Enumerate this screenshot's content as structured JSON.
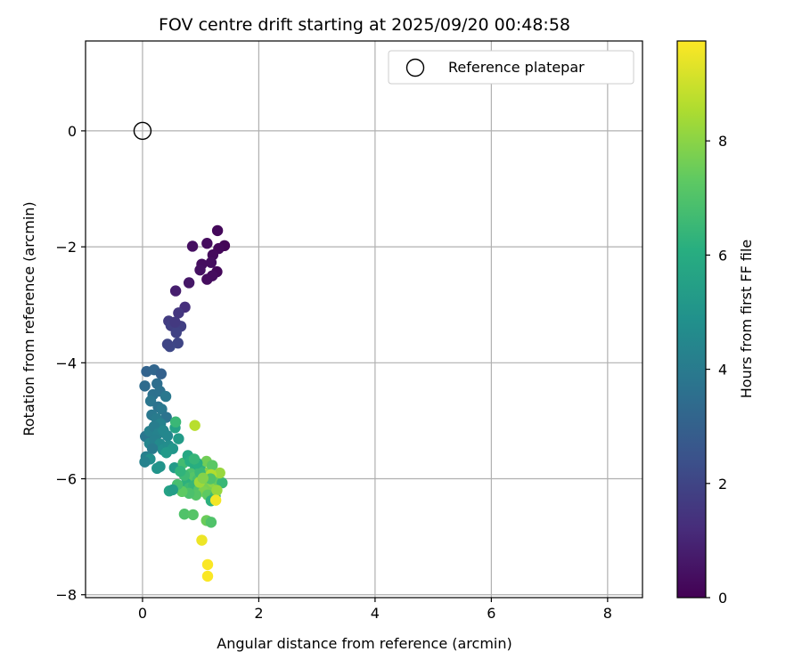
{
  "chart_data": {
    "type": "scatter",
    "title": "FOV centre drift starting at 2025/09/20 00:48:58",
    "xlabel": "Angular distance from reference (arcmin)",
    "ylabel": "Rotation from reference (arcmin)",
    "xlim": [
      -0.98,
      8.6
    ],
    "ylim": [
      -8.05,
      1.55
    ],
    "xticks": [
      0,
      2,
      4,
      6,
      8
    ],
    "yticks": [
      0,
      -2,
      -4,
      -6,
      -8
    ],
    "grid": true,
    "legend": {
      "placement": "top-right",
      "entries": [
        "Reference platepar"
      ]
    },
    "reference_point": {
      "x": 0,
      "y": 0
    },
    "colorbar": {
      "label": "Hours from first FF file",
      "min": 0,
      "max": 9.75,
      "ticks": [
        0,
        2,
        4,
        6,
        8
      ],
      "colormap": "viridis"
    },
    "series": [
      {
        "points": [
          {
            "x": 1.29,
            "y": -1.72,
            "t": 0.2
          },
          {
            "x": 1.41,
            "y": -1.98,
            "t": 0.1
          },
          {
            "x": 1.31,
            "y": -2.03,
            "t": 0.2
          },
          {
            "x": 1.11,
            "y": -1.94,
            "t": 0.3
          },
          {
            "x": 1.21,
            "y": -2.14,
            "t": 0.25
          },
          {
            "x": 0.86,
            "y": -1.99,
            "t": 0.4
          },
          {
            "x": 1.02,
            "y": -2.3,
            "t": 0.35
          },
          {
            "x": 0.99,
            "y": -2.4,
            "t": 0.45
          },
          {
            "x": 1.28,
            "y": -2.43,
            "t": 0.2
          },
          {
            "x": 1.2,
            "y": -2.5,
            "t": 0.3
          },
          {
            "x": 1.11,
            "y": -2.56,
            "t": 0.3
          },
          {
            "x": 1.18,
            "y": -2.27,
            "t": 0.35
          },
          {
            "x": 0.8,
            "y": -2.62,
            "t": 0.6
          },
          {
            "x": 0.57,
            "y": -2.76,
            "t": 0.8
          },
          {
            "x": 0.73,
            "y": -3.04,
            "t": 1.3
          },
          {
            "x": 0.62,
            "y": -3.14,
            "t": 1.5
          },
          {
            "x": 0.45,
            "y": -3.28,
            "t": 1.7
          },
          {
            "x": 0.49,
            "y": -3.36,
            "t": 1.8
          },
          {
            "x": 0.66,
            "y": -3.37,
            "t": 1.8
          },
          {
            "x": 0.58,
            "y": -3.48,
            "t": 1.9
          },
          {
            "x": 0.61,
            "y": -3.66,
            "t": 2.0
          },
          {
            "x": 0.47,
            "y": -3.72,
            "t": 2.1
          },
          {
            "x": 0.43,
            "y": -3.68,
            "t": 2.0
          },
          {
            "x": 0.56,
            "y": -3.3,
            "t": 1.6
          },
          {
            "x": 0.07,
            "y": -4.15,
            "t": 3.1
          },
          {
            "x": 0.2,
            "y": -4.12,
            "t": 3.2
          },
          {
            "x": 0.32,
            "y": -4.19,
            "t": 3.0
          },
          {
            "x": 0.04,
            "y": -4.4,
            "t": 3.4
          },
          {
            "x": 0.25,
            "y": -4.36,
            "t": 3.5
          },
          {
            "x": 0.18,
            "y": -4.55,
            "t": 3.6
          },
          {
            "x": 0.3,
            "y": -4.49,
            "t": 3.6
          },
          {
            "x": 0.4,
            "y": -4.58,
            "t": 3.9
          },
          {
            "x": 0.14,
            "y": -4.66,
            "t": 3.8
          },
          {
            "x": 0.27,
            "y": -4.76,
            "t": 3.7
          },
          {
            "x": 0.33,
            "y": -4.8,
            "t": 3.9
          },
          {
            "x": 0.41,
            "y": -4.94,
            "t": 3.7
          },
          {
            "x": 0.16,
            "y": -4.9,
            "t": 3.9
          },
          {
            "x": 0.24,
            "y": -4.96,
            "t": 4.0
          },
          {
            "x": 0.31,
            "y": -5.05,
            "t": 4.3
          },
          {
            "x": 0.05,
            "y": -5.27,
            "t": 3.8
          },
          {
            "x": 0.12,
            "y": -5.18,
            "t": 4.2
          },
          {
            "x": 0.2,
            "y": -5.1,
            "t": 4.1
          },
          {
            "x": 0.27,
            "y": -5.22,
            "t": 4.3
          },
          {
            "x": 0.36,
            "y": -5.17,
            "t": 4.5
          },
          {
            "x": 0.43,
            "y": -5.26,
            "t": 4.5
          },
          {
            "x": 0.12,
            "y": -5.39,
            "t": 4.4
          },
          {
            "x": 0.21,
            "y": -5.33,
            "t": 4.2
          },
          {
            "x": 0.3,
            "y": -5.4,
            "t": 4.6
          },
          {
            "x": 0.35,
            "y": -5.5,
            "t": 4.8
          },
          {
            "x": 0.45,
            "y": -5.43,
            "t": 4.7
          },
          {
            "x": 0.52,
            "y": -5.48,
            "t": 5.1
          },
          {
            "x": 0.62,
            "y": -5.31,
            "t": 5.3
          },
          {
            "x": 0.17,
            "y": -5.48,
            "t": 4.0
          },
          {
            "x": 0.06,
            "y": -5.62,
            "t": 4.2
          },
          {
            "x": 0.13,
            "y": -5.66,
            "t": 4.8
          },
          {
            "x": 0.04,
            "y": -5.71,
            "t": 4.3
          },
          {
            "x": 0.25,
            "y": -5.82,
            "t": 5.0
          },
          {
            "x": 0.3,
            "y": -5.79,
            "t": 5.0
          },
          {
            "x": 0.41,
            "y": -5.55,
            "t": 5.2
          },
          {
            "x": 0.55,
            "y": -5.81,
            "t": 5.3
          },
          {
            "x": 0.56,
            "y": -5.12,
            "t": 5.6
          },
          {
            "x": 0.57,
            "y": -5.02,
            "t": 6.5
          },
          {
            "x": 0.7,
            "y": -5.73,
            "t": 6.7
          },
          {
            "x": 0.78,
            "y": -5.6,
            "t": 5.8
          },
          {
            "x": 0.82,
            "y": -5.7,
            "t": 6.1
          },
          {
            "x": 0.91,
            "y": -5.8,
            "t": 6.0
          },
          {
            "x": 1.0,
            "y": -5.84,
            "t": 6.3
          },
          {
            "x": 0.83,
            "y": -5.91,
            "t": 6.9
          },
          {
            "x": 0.88,
            "y": -5.98,
            "t": 7.1
          },
          {
            "x": 0.95,
            "y": -6.02,
            "t": 6.8
          },
          {
            "x": 1.05,
            "y": -5.95,
            "t": 7.3
          },
          {
            "x": 1.1,
            "y": -5.7,
            "t": 7.6
          },
          {
            "x": 1.15,
            "y": -5.88,
            "t": 7.9
          },
          {
            "x": 1.2,
            "y": -5.77,
            "t": 7.2
          },
          {
            "x": 0.75,
            "y": -6.08,
            "t": 6.2
          },
          {
            "x": 0.8,
            "y": -6.16,
            "t": 6.6
          },
          {
            "x": 0.88,
            "y": -6.12,
            "t": 6.4
          },
          {
            "x": 0.97,
            "y": -6.19,
            "t": 7.0
          },
          {
            "x": 1.04,
            "y": -6.08,
            "t": 7.5
          },
          {
            "x": 1.13,
            "y": -6.14,
            "t": 7.7
          },
          {
            "x": 1.21,
            "y": -6.06,
            "t": 8.0
          },
          {
            "x": 1.29,
            "y": -6.02,
            "t": 7.4
          },
          {
            "x": 1.37,
            "y": -6.07,
            "t": 6.5
          },
          {
            "x": 1.33,
            "y": -5.9,
            "t": 8.2
          },
          {
            "x": 1.18,
            "y": -5.93,
            "t": 8.6
          },
          {
            "x": 1.05,
            "y": -6.22,
            "t": 7.8
          },
          {
            "x": 1.12,
            "y": -6.28,
            "t": 7.3
          },
          {
            "x": 1.25,
            "y": -6.3,
            "t": 6.7
          },
          {
            "x": 1.18,
            "y": -6.38,
            "t": 6.2
          },
          {
            "x": 0.92,
            "y": -6.28,
            "t": 7.1
          },
          {
            "x": 0.8,
            "y": -6.25,
            "t": 6.9
          },
          {
            "x": 0.68,
            "y": -6.22,
            "t": 7.3
          },
          {
            "x": 0.6,
            "y": -6.1,
            "t": 6.8
          },
          {
            "x": 0.46,
            "y": -6.21,
            "t": 5.6
          },
          {
            "x": 0.52,
            "y": -6.19,
            "t": 5.4
          },
          {
            "x": 1.28,
            "y": -6.2,
            "t": 8.2
          },
          {
            "x": 0.99,
            "y": -5.89,
            "t": 6.5
          },
          {
            "x": 0.94,
            "y": -5.73,
            "t": 6.1
          },
          {
            "x": 0.72,
            "y": -5.94,
            "t": 6.6
          },
          {
            "x": 0.65,
            "y": -5.87,
            "t": 6.3
          },
          {
            "x": 0.89,
            "y": -5.66,
            "t": 6.4
          },
          {
            "x": 1.17,
            "y": -6.0,
            "t": 7.0
          },
          {
            "x": 0.98,
            "y": -6.06,
            "t": 8.3
          },
          {
            "x": 1.04,
            "y": -5.99,
            "t": 7.9
          },
          {
            "x": 0.9,
            "y": -5.08,
            "t": 8.7
          },
          {
            "x": 0.72,
            "y": -6.61,
            "t": 7.0
          },
          {
            "x": 0.87,
            "y": -6.62,
            "t": 7.1
          },
          {
            "x": 1.1,
            "y": -6.72,
            "t": 7.5
          },
          {
            "x": 1.18,
            "y": -6.75,
            "t": 7.0
          },
          {
            "x": 1.26,
            "y": -6.37,
            "t": 9.6
          },
          {
            "x": 1.02,
            "y": -7.06,
            "t": 9.5
          },
          {
            "x": 1.12,
            "y": -7.48,
            "t": 9.7
          },
          {
            "x": 1.12,
            "y": -7.68,
            "t": 9.7
          }
        ]
      }
    ]
  }
}
